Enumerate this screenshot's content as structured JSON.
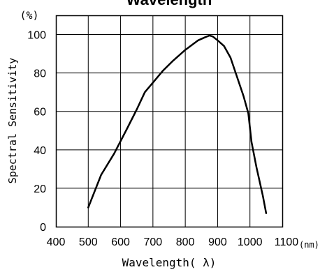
{
  "chart_data": {
    "type": "line",
    "title": "Wavelength",
    "xlabel": "Wavelength( λ)",
    "ylabel": "Spectral Sensitivity",
    "y_unit": "(%)",
    "x_unit": "(nm)",
    "xlim": [
      400,
      1100
    ],
    "ylim": [
      0,
      100
    ],
    "xticks": [
      "400",
      "500",
      "600",
      "700",
      "800",
      "900",
      "1000",
      "1100"
    ],
    "yticks": [
      "0",
      "20",
      "40",
      "60",
      "80",
      "100"
    ],
    "grid": true,
    "series": [
      {
        "x": [
          500,
          540,
          580,
          620,
          650,
          675,
          700,
          730,
          760,
          800,
          840,
          860,
          875,
          885,
          900,
          920,
          940,
          960,
          980,
          995,
          1005,
          1020,
          1040,
          1050
        ],
        "y": [
          10,
          27,
          38,
          51,
          61,
          70,
          75,
          81,
          86,
          92,
          97,
          98.5,
          99.5,
          99,
          97,
          94,
          88,
          78,
          68,
          59,
          44,
          31,
          16,
          7
        ]
      }
    ]
  }
}
